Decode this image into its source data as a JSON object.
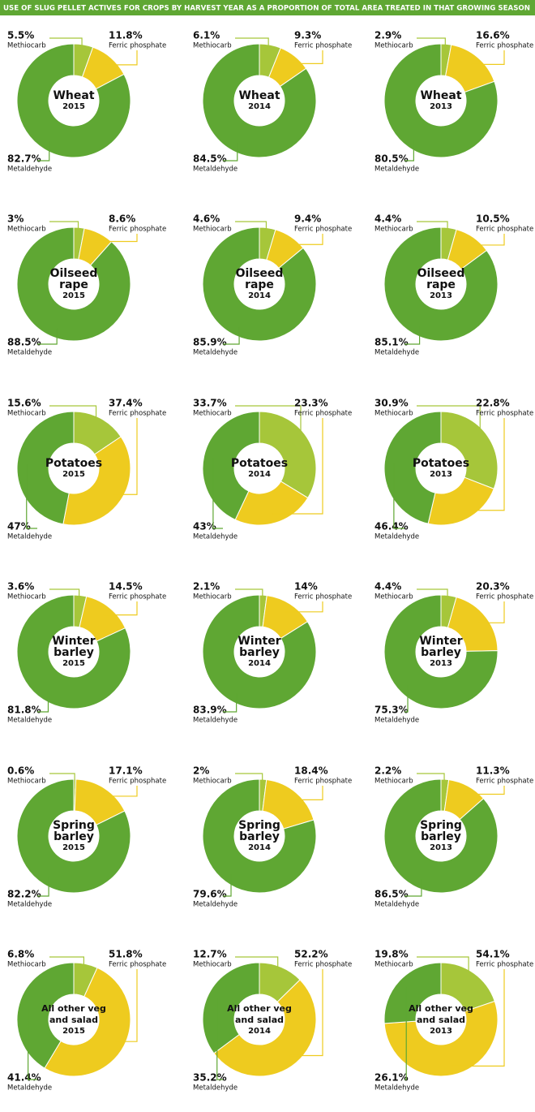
{
  "header": {
    "title": "USE OF SLUG PELLET ACTIVES FOR CROPS BY HARVEST YEAR AS A PROPORTION OF TOTAL AREA TREATED IN THAT GROWING SEASON"
  },
  "chart_data": [
    {
      "type": "pie",
      "title": [
        "Wheat"
      ],
      "subtitle": "2015",
      "categories": [
        "Methiocarb",
        "Ferric phosphate",
        "Metaldehyde"
      ],
      "values": [
        5.5,
        11.8,
        82.7
      ],
      "value_labels": [
        "5.5%",
        "11.8%",
        "82.7%"
      ],
      "colors": [
        "#a6c63a",
        "#eecb1f",
        "#5fa733"
      ]
    },
    {
      "type": "pie",
      "title": [
        "Wheat"
      ],
      "subtitle": "2014",
      "categories": [
        "Methiocarb",
        "Ferric phosphate",
        "Metaldehyde"
      ],
      "values": [
        6.1,
        9.3,
        84.5
      ],
      "value_labels": [
        "6.1%",
        "9.3%",
        "84.5%"
      ],
      "colors": [
        "#a6c63a",
        "#eecb1f",
        "#5fa733"
      ]
    },
    {
      "type": "pie",
      "title": [
        "Wheat"
      ],
      "subtitle": "2013",
      "categories": [
        "Methiocarb",
        "Ferric phosphate",
        "Metaldehyde"
      ],
      "values": [
        2.9,
        16.6,
        80.5
      ],
      "value_labels": [
        "2.9%",
        "16.6%",
        "80.5%"
      ],
      "colors": [
        "#a6c63a",
        "#eecb1f",
        "#5fa733"
      ]
    },
    {
      "type": "pie",
      "title": [
        "Oilseed",
        "rape"
      ],
      "subtitle": "2015",
      "categories": [
        "Methiocarb",
        "Ferric phosphate",
        "Metaldehyde"
      ],
      "values": [
        3,
        8.6,
        88.5
      ],
      "value_labels": [
        "3%",
        "8.6%",
        "88.5%"
      ],
      "colors": [
        "#a6c63a",
        "#eecb1f",
        "#5fa733"
      ]
    },
    {
      "type": "pie",
      "title": [
        "Oilseed",
        "rape"
      ],
      "subtitle": "2014",
      "categories": [
        "Methiocarb",
        "Ferric phosphate",
        "Metaldehyde"
      ],
      "values": [
        4.6,
        9.4,
        85.9
      ],
      "value_labels": [
        "4.6%",
        "9.4%",
        "85.9%"
      ],
      "colors": [
        "#a6c63a",
        "#eecb1f",
        "#5fa733"
      ]
    },
    {
      "type": "pie",
      "title": [
        "Oilseed",
        "rape"
      ],
      "subtitle": "2013",
      "categories": [
        "Methiocarb",
        "Ferric phosphate",
        "Metaldehyde"
      ],
      "values": [
        4.4,
        10.5,
        85.1
      ],
      "value_labels": [
        "4.4%",
        "10.5%",
        "85.1%"
      ],
      "colors": [
        "#a6c63a",
        "#eecb1f",
        "#5fa733"
      ]
    },
    {
      "type": "pie",
      "title": [
        "Potatoes"
      ],
      "subtitle": "2015",
      "categories": [
        "Methiocarb",
        "Ferric phosphate",
        "Metaldehyde"
      ],
      "values": [
        15.6,
        37.4,
        47
      ],
      "value_labels": [
        "15.6%",
        "37.4%",
        "47%"
      ],
      "colors": [
        "#a6c63a",
        "#eecb1f",
        "#5fa733"
      ]
    },
    {
      "type": "pie",
      "title": [
        "Potatoes"
      ],
      "subtitle": "2014",
      "categories": [
        "Methiocarb",
        "Ferric phosphate",
        "Metaldehyde"
      ],
      "values": [
        33.7,
        23.3,
        43
      ],
      "value_labels": [
        "33.7%",
        "23.3%",
        "43%"
      ],
      "colors": [
        "#a6c63a",
        "#eecb1f",
        "#5fa733"
      ]
    },
    {
      "type": "pie",
      "title": [
        "Potatoes"
      ],
      "subtitle": "2013",
      "categories": [
        "Methiocarb",
        "Ferric phosphate",
        "Metaldehyde"
      ],
      "values": [
        30.9,
        22.8,
        46.4
      ],
      "value_labels": [
        "30.9%",
        "22.8%",
        "46.4%"
      ],
      "colors": [
        "#a6c63a",
        "#eecb1f",
        "#5fa733"
      ]
    },
    {
      "type": "pie",
      "title": [
        "Winter",
        "barley"
      ],
      "subtitle": "2015",
      "categories": [
        "Methiocarb",
        "Ferric phosphate",
        "Metaldehyde"
      ],
      "values": [
        3.6,
        14.5,
        81.8
      ],
      "value_labels": [
        "3.6%",
        "14.5%",
        "81.8%"
      ],
      "colors": [
        "#a6c63a",
        "#eecb1f",
        "#5fa733"
      ]
    },
    {
      "type": "pie",
      "title": [
        "Winter",
        "barley"
      ],
      "subtitle": "2014",
      "categories": [
        "Methiocarb",
        "Ferric phosphate",
        "Metaldehyde"
      ],
      "values": [
        2.1,
        14,
        83.9
      ],
      "value_labels": [
        "2.1%",
        "14%",
        "83.9%"
      ],
      "colors": [
        "#a6c63a",
        "#eecb1f",
        "#5fa733"
      ]
    },
    {
      "type": "pie",
      "title": [
        "Winter",
        "barley"
      ],
      "subtitle": "2013",
      "categories": [
        "Methiocarb",
        "Ferric phosphate",
        "Metaldehyde"
      ],
      "values": [
        4.4,
        20.3,
        75.3
      ],
      "value_labels": [
        "4.4%",
        "20.3%",
        "75.3%"
      ],
      "colors": [
        "#a6c63a",
        "#eecb1f",
        "#5fa733"
      ]
    },
    {
      "type": "pie",
      "title": [
        "Spring",
        "barley"
      ],
      "subtitle": "2015",
      "categories": [
        "Methiocarb",
        "Ferric phosphate",
        "Metaldehyde"
      ],
      "values": [
        0.6,
        17.1,
        82.2
      ],
      "value_labels": [
        "0.6%",
        "17.1%",
        "82.2%"
      ],
      "colors": [
        "#a6c63a",
        "#eecb1f",
        "#5fa733"
      ]
    },
    {
      "type": "pie",
      "title": [
        "Spring",
        "barley"
      ],
      "subtitle": "2014",
      "categories": [
        "Methiocarb",
        "Ferric phosphate",
        "Metaldehyde"
      ],
      "values": [
        2,
        18.4,
        79.6
      ],
      "value_labels": [
        "2%",
        "18.4%",
        "79.6%"
      ],
      "colors": [
        "#a6c63a",
        "#eecb1f",
        "#5fa733"
      ]
    },
    {
      "type": "pie",
      "title": [
        "Spring",
        "barley"
      ],
      "subtitle": "2013",
      "categories": [
        "Methiocarb",
        "Ferric phosphate",
        "Metaldehyde"
      ],
      "values": [
        2.2,
        11.3,
        86.5
      ],
      "value_labels": [
        "2.2%",
        "11.3%",
        "86.5%"
      ],
      "colors": [
        "#a6c63a",
        "#eecb1f",
        "#5fa733"
      ]
    },
    {
      "type": "pie",
      "title": [
        "All other veg",
        "and salad"
      ],
      "subtitle": "2015",
      "categories": [
        "Methiocarb",
        "Ferric phosphate",
        "Metaldehyde"
      ],
      "values": [
        6.8,
        51.8,
        41.4
      ],
      "value_labels": [
        "6.8%",
        "51.8%",
        "41.4%"
      ],
      "colors": [
        "#a6c63a",
        "#eecb1f",
        "#5fa733"
      ]
    },
    {
      "type": "pie",
      "title": [
        "All other veg",
        "and salad"
      ],
      "subtitle": "2014",
      "categories": [
        "Methiocarb",
        "Ferric phosphate",
        "Metaldehyde"
      ],
      "values": [
        12.7,
        52.2,
        35.2
      ],
      "value_labels": [
        "12.7%",
        "52.2%",
        "35.2%"
      ],
      "colors": [
        "#a6c63a",
        "#eecb1f",
        "#5fa733"
      ]
    },
    {
      "type": "pie",
      "title": [
        "All other veg",
        "and salad"
      ],
      "subtitle": "2013",
      "categories": [
        "Methiocarb",
        "Ferric phosphate",
        "Metaldehyde"
      ],
      "values": [
        19.8,
        54.1,
        26.1
      ],
      "value_labels": [
        "19.8%",
        "54.1%",
        "26.1%"
      ],
      "colors": [
        "#a6c63a",
        "#eecb1f",
        "#5fa733"
      ]
    }
  ]
}
